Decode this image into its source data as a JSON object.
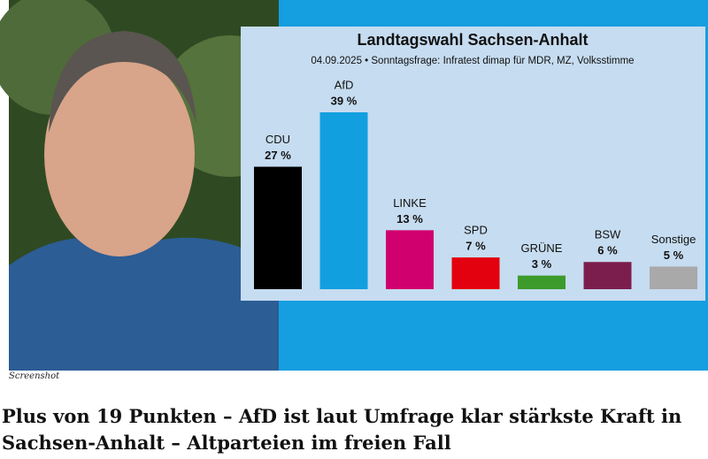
{
  "chart_data": {
    "type": "bar",
    "title": "Landtagswahl Sachsen-Anhalt",
    "subtitle": "04.09.2025 • Sonntagsfrage: Infratest dimap für MDR, MZ, Volksstimme",
    "categories": [
      "CDU",
      "AfD",
      "LINKE",
      "SPD",
      "GRÜNE",
      "BSW",
      "Sonstige"
    ],
    "values": [
      27,
      39,
      13,
      7,
      3,
      6,
      5
    ],
    "value_labels": [
      "27 %",
      "39 %",
      "13 %",
      "7 %",
      "3 %",
      "6 %",
      "5 %"
    ],
    "colors": [
      "#000000",
      "#129fe0",
      "#d1006f",
      "#e3000f",
      "#3d9b2b",
      "#7c1e4d",
      "#a9a9a9"
    ]
  },
  "caption": "Screenshot",
  "headline": "Plus von 19 Punkten – AfD ist laut Umfrage klar stärkste Kraft in Sachsen-Anhalt – Altparteien im freien Fall"
}
